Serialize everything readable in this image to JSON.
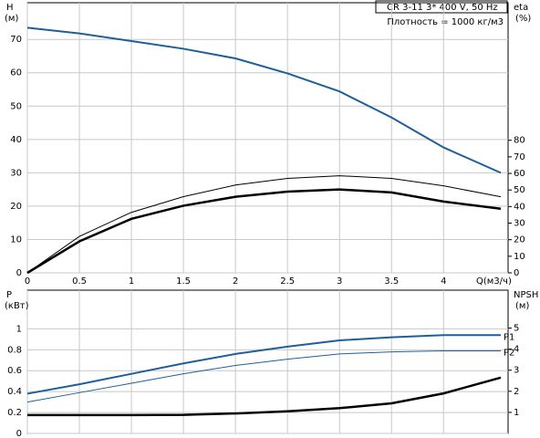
{
  "header": {
    "model": "CR 3-11    3* 400 V, 50 Hz",
    "density": "Плотность = 1000 кг/м3"
  },
  "chart_data": [
    {
      "type": "line",
      "ylabel": "H",
      "yunit": "(м)",
      "y2label": "eta",
      "y2unit": "(%)",
      "xlabel": "Q(м3/ч)",
      "x": [
        0,
        0.5,
        1,
        1.5,
        2,
        2.5,
        3,
        3.5,
        4,
        4.55
      ],
      "xlim": [
        0,
        4.62
      ],
      "xticks": [
        0,
        0.5,
        1,
        1.5,
        2,
        2.5,
        3,
        3.5,
        4
      ],
      "ylim": [
        0,
        81
      ],
      "yticks": [
        0,
        10,
        20,
        30,
        40,
        50,
        60,
        70
      ],
      "y2lim": [
        0,
        163
      ],
      "y2ticks": [
        0,
        10,
        20,
        30,
        40,
        50,
        60,
        70,
        80
      ],
      "grid": true,
      "series": [
        {
          "color": "#1f5f99",
          "width": 2,
          "values": [
            73.5,
            71.8,
            69.5,
            67.2,
            64.3,
            59.8,
            54.4,
            46.6,
            37.6,
            30
          ]
        },
        {
          "color": "#000000",
          "width": 1,
          "axis": "y2",
          "values": [
            0,
            22,
            36.5,
            46,
            53,
            57,
            58.6,
            57,
            52.5,
            45.9
          ]
        },
        {
          "color": "#000000",
          "width": 2.5,
          "axis": "y2",
          "values": [
            0,
            19,
            32.6,
            40.5,
            45.9,
            49,
            50.3,
            48.5,
            43,
            38.7
          ]
        }
      ]
    },
    {
      "type": "line",
      "ylabel": "P",
      "yunit": "(кВт)",
      "y2label": "NPSH",
      "y2unit": "(м)",
      "x": [
        0,
        0.5,
        1,
        1.5,
        2,
        2.5,
        3,
        3.5,
        4,
        4.55
      ],
      "xlim": [
        0,
        4.62
      ],
      "xticks": [
        0,
        0.5,
        1,
        1.5,
        2,
        2.5,
        3,
        3.5,
        4
      ],
      "ylim": [
        0,
        1.37
      ],
      "yticks": [
        0,
        0.2,
        0.4,
        0.6,
        0.8,
        1
      ],
      "y2lim": [
        0,
        6.8
      ],
      "y2ticks": [
        1,
        2,
        3,
        4,
        5
      ],
      "grid": true,
      "series": [
        {
          "name": "P1",
          "color": "#1f5f99",
          "width": 2,
          "values": [
            0.38,
            0.47,
            0.57,
            0.67,
            0.76,
            0.83,
            0.89,
            0.92,
            0.94,
            0.94
          ]
        },
        {
          "name": "P2",
          "color": "#1f5f99",
          "width": 1,
          "values": [
            0.3,
            0.39,
            0.48,
            0.57,
            0.65,
            0.71,
            0.76,
            0.78,
            0.79,
            0.79
          ]
        },
        {
          "color": "#000000",
          "width": 2.5,
          "axis": "y2",
          "values": [
            0.87,
            0.87,
            0.87,
            0.88,
            0.95,
            1.05,
            1.2,
            1.43,
            1.9,
            2.65
          ]
        }
      ]
    }
  ]
}
